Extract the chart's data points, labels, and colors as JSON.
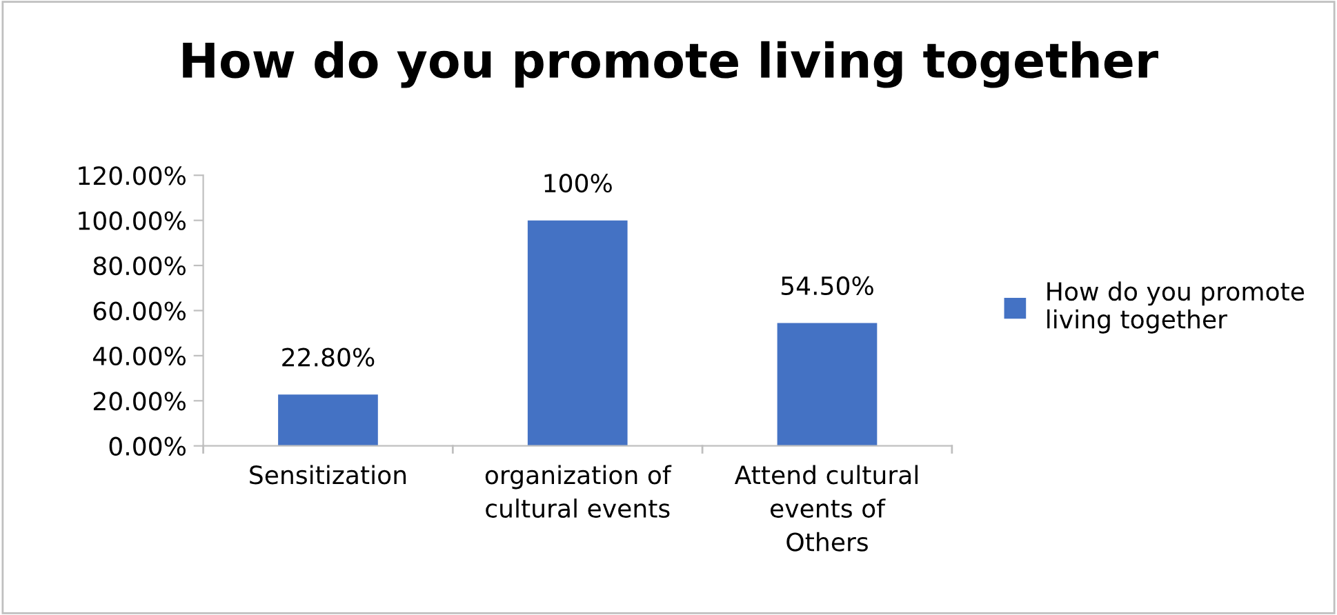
{
  "chart_data": {
    "type": "bar",
    "title": "How do you promote living together",
    "categories": [
      "Sensitization",
      "organization of\ncultural events",
      "Attend cultural\nevents of\nOthers"
    ],
    "series": [
      {
        "name": "How do you promote living together",
        "color": "#4472c4",
        "values": [
          22.8,
          100,
          54.5
        ],
        "value_labels": [
          "22.80%",
          "100%",
          "54.50%"
        ]
      }
    ],
    "ylim": [
      0,
      120
    ],
    "yticks": [
      {
        "value": 0,
        "label": "0.00%"
      },
      {
        "value": 20,
        "label": "20.00%"
      },
      {
        "value": 40,
        "label": "40.00%"
      },
      {
        "value": 60,
        "label": "60.00%"
      },
      {
        "value": 80,
        "label": "80.00%"
      },
      {
        "value": 100,
        "label": "100.00%"
      },
      {
        "value": 120,
        "label": "120.00%"
      }
    ],
    "grid": false,
    "legend": "right"
  }
}
